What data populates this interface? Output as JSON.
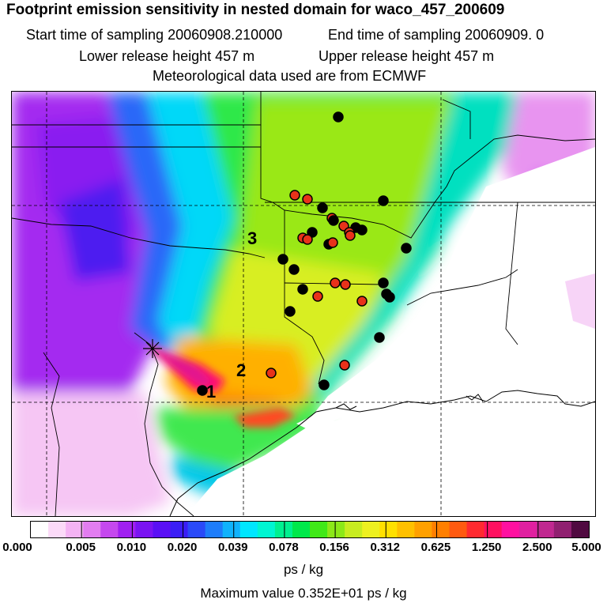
{
  "header": {
    "title": "Footprint emission sensitivity in nested domain for waco_457_200609",
    "start_time": "Start time of sampling 20060908.210000",
    "end_time": "End time of sampling 20060909.     0",
    "lower_height": "Lower release height  457 m",
    "upper_height": "Upper release height  457 m",
    "met_data": "Meteorological data used are from ECMWF"
  },
  "map": {
    "area_labels": [
      "1",
      "2",
      "3"
    ],
    "release_marker": "star-icon",
    "dot_colors": {
      "red": "#e8321a",
      "black": "#000000"
    }
  },
  "colorbar": {
    "ticks": [
      "0.000",
      "0.005",
      "0.010",
      "0.020",
      "0.039",
      "0.078",
      "0.156",
      "0.312",
      "0.625",
      "1.250",
      "2.500",
      "5.000"
    ],
    "colors": [
      "#ffffff",
      "#fbdaf8",
      "#f4b3f4",
      "#e27df0",
      "#c548ee",
      "#a020f0",
      "#7a14f2",
      "#5a10f5",
      "#3b1ef5",
      "#2a4af8",
      "#1e7dfa",
      "#10b2fc",
      "#00e6ff",
      "#00f5d2",
      "#00f090",
      "#00e84a",
      "#40e818",
      "#8ce818",
      "#c8ec20",
      "#eef020",
      "#ffe000",
      "#ffc000",
      "#ffa000",
      "#ff7f00",
      "#ff5a10",
      "#ff2a30",
      "#ff1060",
      "#ff10a0",
      "#e020a0",
      "#c02890",
      "#902070",
      "#500a40"
    ]
  },
  "unit": "ps / kg",
  "max_value": "Maximum value  0.352E+01 ps / kg"
}
